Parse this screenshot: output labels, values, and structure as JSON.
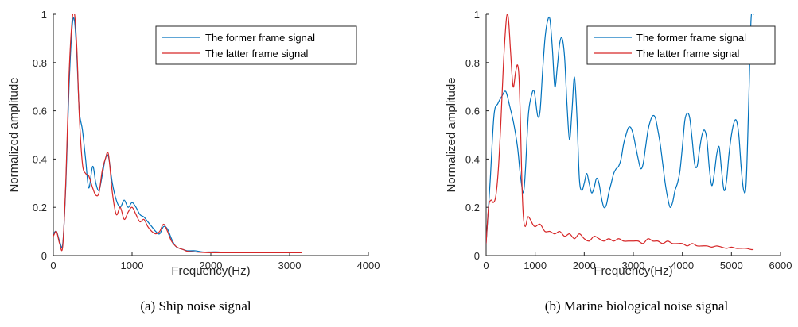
{
  "chart_data": [
    {
      "type": "line",
      "caption": "(a) Ship noise signal",
      "xlabel": "Frequency(Hz)",
      "ylabel": "Normalized amplitude",
      "xlim": [
        0,
        4000
      ],
      "ylim": [
        0,
        1
      ],
      "xticks": [
        0,
        1000,
        2000,
        3000,
        4000
      ],
      "yticks": [
        0,
        0.2,
        0.4,
        0.6,
        0.8,
        1
      ],
      "grid": false,
      "legend_position": "top-right",
      "series": [
        {
          "name": "The former frame signal",
          "color": "#0072BD",
          "x": [
            0,
            40,
            80,
            120,
            160,
            200,
            240,
            270,
            300,
            330,
            370,
            410,
            450,
            500,
            540,
            580,
            620,
            660,
            700,
            750,
            800,
            850,
            900,
            950,
            1000,
            1050,
            1100,
            1150,
            1200,
            1250,
            1300,
            1350,
            1400,
            1450,
            1500,
            1550,
            1600,
            1650,
            1700,
            1800,
            1900,
            2000,
            2100,
            2200,
            2300,
            2400,
            2500,
            2600,
            2700,
            2800,
            2900,
            3000,
            3100,
            3160
          ],
          "y": [
            0.09,
            0.1,
            0.06,
            0.05,
            0.3,
            0.7,
            0.95,
            0.97,
            0.82,
            0.6,
            0.52,
            0.4,
            0.28,
            0.37,
            0.3,
            0.27,
            0.33,
            0.4,
            0.41,
            0.3,
            0.23,
            0.2,
            0.23,
            0.2,
            0.22,
            0.2,
            0.17,
            0.16,
            0.14,
            0.12,
            0.1,
            0.09,
            0.12,
            0.11,
            0.07,
            0.04,
            0.03,
            0.025,
            0.02,
            0.02,
            0.015,
            0.015,
            0.015,
            0.012,
            0.012,
            0.012,
            0.012,
            0.012,
            0.013,
            0.012,
            0.012,
            0.012,
            0.012,
            0.012
          ]
        },
        {
          "name": "The latter frame signal",
          "color": "#D62728",
          "x": [
            0,
            40,
            80,
            120,
            160,
            200,
            240,
            270,
            300,
            330,
            370,
            410,
            450,
            500,
            540,
            580,
            620,
            660,
            700,
            750,
            800,
            850,
            900,
            950,
            1000,
            1050,
            1100,
            1150,
            1200,
            1250,
            1300,
            1350,
            1400,
            1450,
            1500,
            1550,
            1600,
            1650,
            1700,
            1800,
            1900,
            2000,
            2100,
            2200,
            2300,
            2400,
            2500,
            2600,
            2700,
            2800,
            2900,
            3000,
            3100,
            3160
          ],
          "y": [
            0.08,
            0.1,
            0.05,
            0.04,
            0.32,
            0.75,
            0.98,
            1.0,
            0.85,
            0.58,
            0.38,
            0.34,
            0.33,
            0.28,
            0.25,
            0.26,
            0.35,
            0.4,
            0.42,
            0.26,
            0.17,
            0.2,
            0.15,
            0.18,
            0.2,
            0.17,
            0.14,
            0.15,
            0.12,
            0.1,
            0.09,
            0.1,
            0.13,
            0.1,
            0.06,
            0.04,
            0.03,
            0.025,
            0.018,
            0.015,
            0.013,
            0.012,
            0.012,
            0.012,
            0.012,
            0.012,
            0.012,
            0.012,
            0.012,
            0.012,
            0.012,
            0.012,
            0.012,
            0.012
          ]
        }
      ]
    },
    {
      "type": "line",
      "caption": "(b) Marine biological noise signal",
      "xlabel": "Frequency(Hz)",
      "ylabel": "Normalized amplitude",
      "xlim": [
        0,
        6000
      ],
      "ylim": [
        0,
        1
      ],
      "xticks": [
        0,
        1000,
        2000,
        3000,
        4000,
        5000,
        6000
      ],
      "yticks": [
        0,
        0.2,
        0.4,
        0.6,
        0.8,
        1
      ],
      "grid": false,
      "legend_position": "top-right",
      "series": [
        {
          "name": "The former frame signal",
          "color": "#0072BD",
          "x": [
            0,
            80,
            160,
            240,
            320,
            400,
            480,
            560,
            640,
            700,
            760,
            800,
            860,
            920,
            980,
            1050,
            1100,
            1150,
            1200,
            1250,
            1300,
            1350,
            1400,
            1450,
            1500,
            1550,
            1600,
            1650,
            1700,
            1750,
            1800,
            1850,
            1900,
            1950,
            2000,
            2050,
            2100,
            2150,
            2200,
            2250,
            2300,
            2350,
            2400,
            2450,
            2500,
            2550,
            2600,
            2650,
            2700,
            2750,
            2800,
            2850,
            2900,
            2950,
            3000,
            3050,
            3100,
            3150,
            3200,
            3250,
            3300,
            3350,
            3400,
            3450,
            3500,
            3550,
            3600,
            3650,
            3700,
            3750,
            3800,
            3850,
            3900,
            3950,
            4000,
            4050,
            4100,
            4150,
            4200,
            4250,
            4300,
            4350,
            4400,
            4450,
            4500,
            4550,
            4600,
            4650,
            4700,
            4750,
            4800,
            4850,
            4900,
            4950,
            5000,
            5050,
            5100,
            5150,
            5200,
            5250,
            5300,
            5350,
            5400,
            5450
          ],
          "y": [
            0.05,
            0.3,
            0.58,
            0.63,
            0.66,
            0.68,
            0.62,
            0.55,
            0.45,
            0.33,
            0.26,
            0.35,
            0.58,
            0.66,
            0.68,
            0.58,
            0.6,
            0.76,
            0.9,
            0.97,
            0.98,
            0.86,
            0.7,
            0.78,
            0.88,
            0.9,
            0.82,
            0.62,
            0.48,
            0.6,
            0.74,
            0.58,
            0.32,
            0.27,
            0.3,
            0.34,
            0.3,
            0.26,
            0.28,
            0.32,
            0.3,
            0.24,
            0.2,
            0.21,
            0.26,
            0.3,
            0.34,
            0.36,
            0.37,
            0.4,
            0.46,
            0.5,
            0.53,
            0.53,
            0.5,
            0.45,
            0.4,
            0.36,
            0.38,
            0.45,
            0.52,
            0.56,
            0.58,
            0.57,
            0.52,
            0.46,
            0.38,
            0.3,
            0.24,
            0.2,
            0.22,
            0.27,
            0.3,
            0.35,
            0.45,
            0.56,
            0.59,
            0.57,
            0.48,
            0.38,
            0.37,
            0.44,
            0.5,
            0.52,
            0.48,
            0.36,
            0.29,
            0.34,
            0.42,
            0.45,
            0.35,
            0.27,
            0.31,
            0.42,
            0.5,
            0.55,
            0.56,
            0.5,
            0.36,
            0.27,
            0.3,
            0.62,
            0.98,
            1.0
          ],
          "clip_top": 1
        },
        {
          "name": "The latter frame signal",
          "color": "#D62728",
          "x": [
            0,
            50,
            100,
            150,
            200,
            250,
            300,
            350,
            400,
            430,
            460,
            500,
            550,
            600,
            640,
            670,
            700,
            730,
            760,
            800,
            850,
            900,
            950,
            1000,
            1100,
            1200,
            1300,
            1400,
            1500,
            1600,
            1700,
            1800,
            1900,
            2000,
            2100,
            2200,
            2300,
            2400,
            2500,
            2600,
            2700,
            2800,
            2900,
            3000,
            3100,
            3200,
            3300,
            3400,
            3500,
            3600,
            3700,
            3800,
            3900,
            4000,
            4100,
            4200,
            4300,
            4400,
            4500,
            4600,
            4700,
            4800,
            4900,
            5000,
            5100,
            5200,
            5300,
            5400,
            5450
          ],
          "y": [
            0.05,
            0.2,
            0.23,
            0.22,
            0.25,
            0.36,
            0.55,
            0.78,
            0.95,
            1.0,
            0.97,
            0.84,
            0.7,
            0.76,
            0.79,
            0.74,
            0.55,
            0.3,
            0.16,
            0.12,
            0.16,
            0.15,
            0.13,
            0.12,
            0.13,
            0.1,
            0.1,
            0.09,
            0.1,
            0.08,
            0.09,
            0.07,
            0.09,
            0.07,
            0.06,
            0.08,
            0.07,
            0.06,
            0.07,
            0.06,
            0.07,
            0.06,
            0.06,
            0.06,
            0.06,
            0.05,
            0.07,
            0.06,
            0.06,
            0.05,
            0.06,
            0.05,
            0.05,
            0.05,
            0.04,
            0.05,
            0.04,
            0.04,
            0.04,
            0.035,
            0.04,
            0.035,
            0.03,
            0.035,
            0.03,
            0.03,
            0.03,
            0.025,
            0.025
          ]
        }
      ]
    }
  ]
}
